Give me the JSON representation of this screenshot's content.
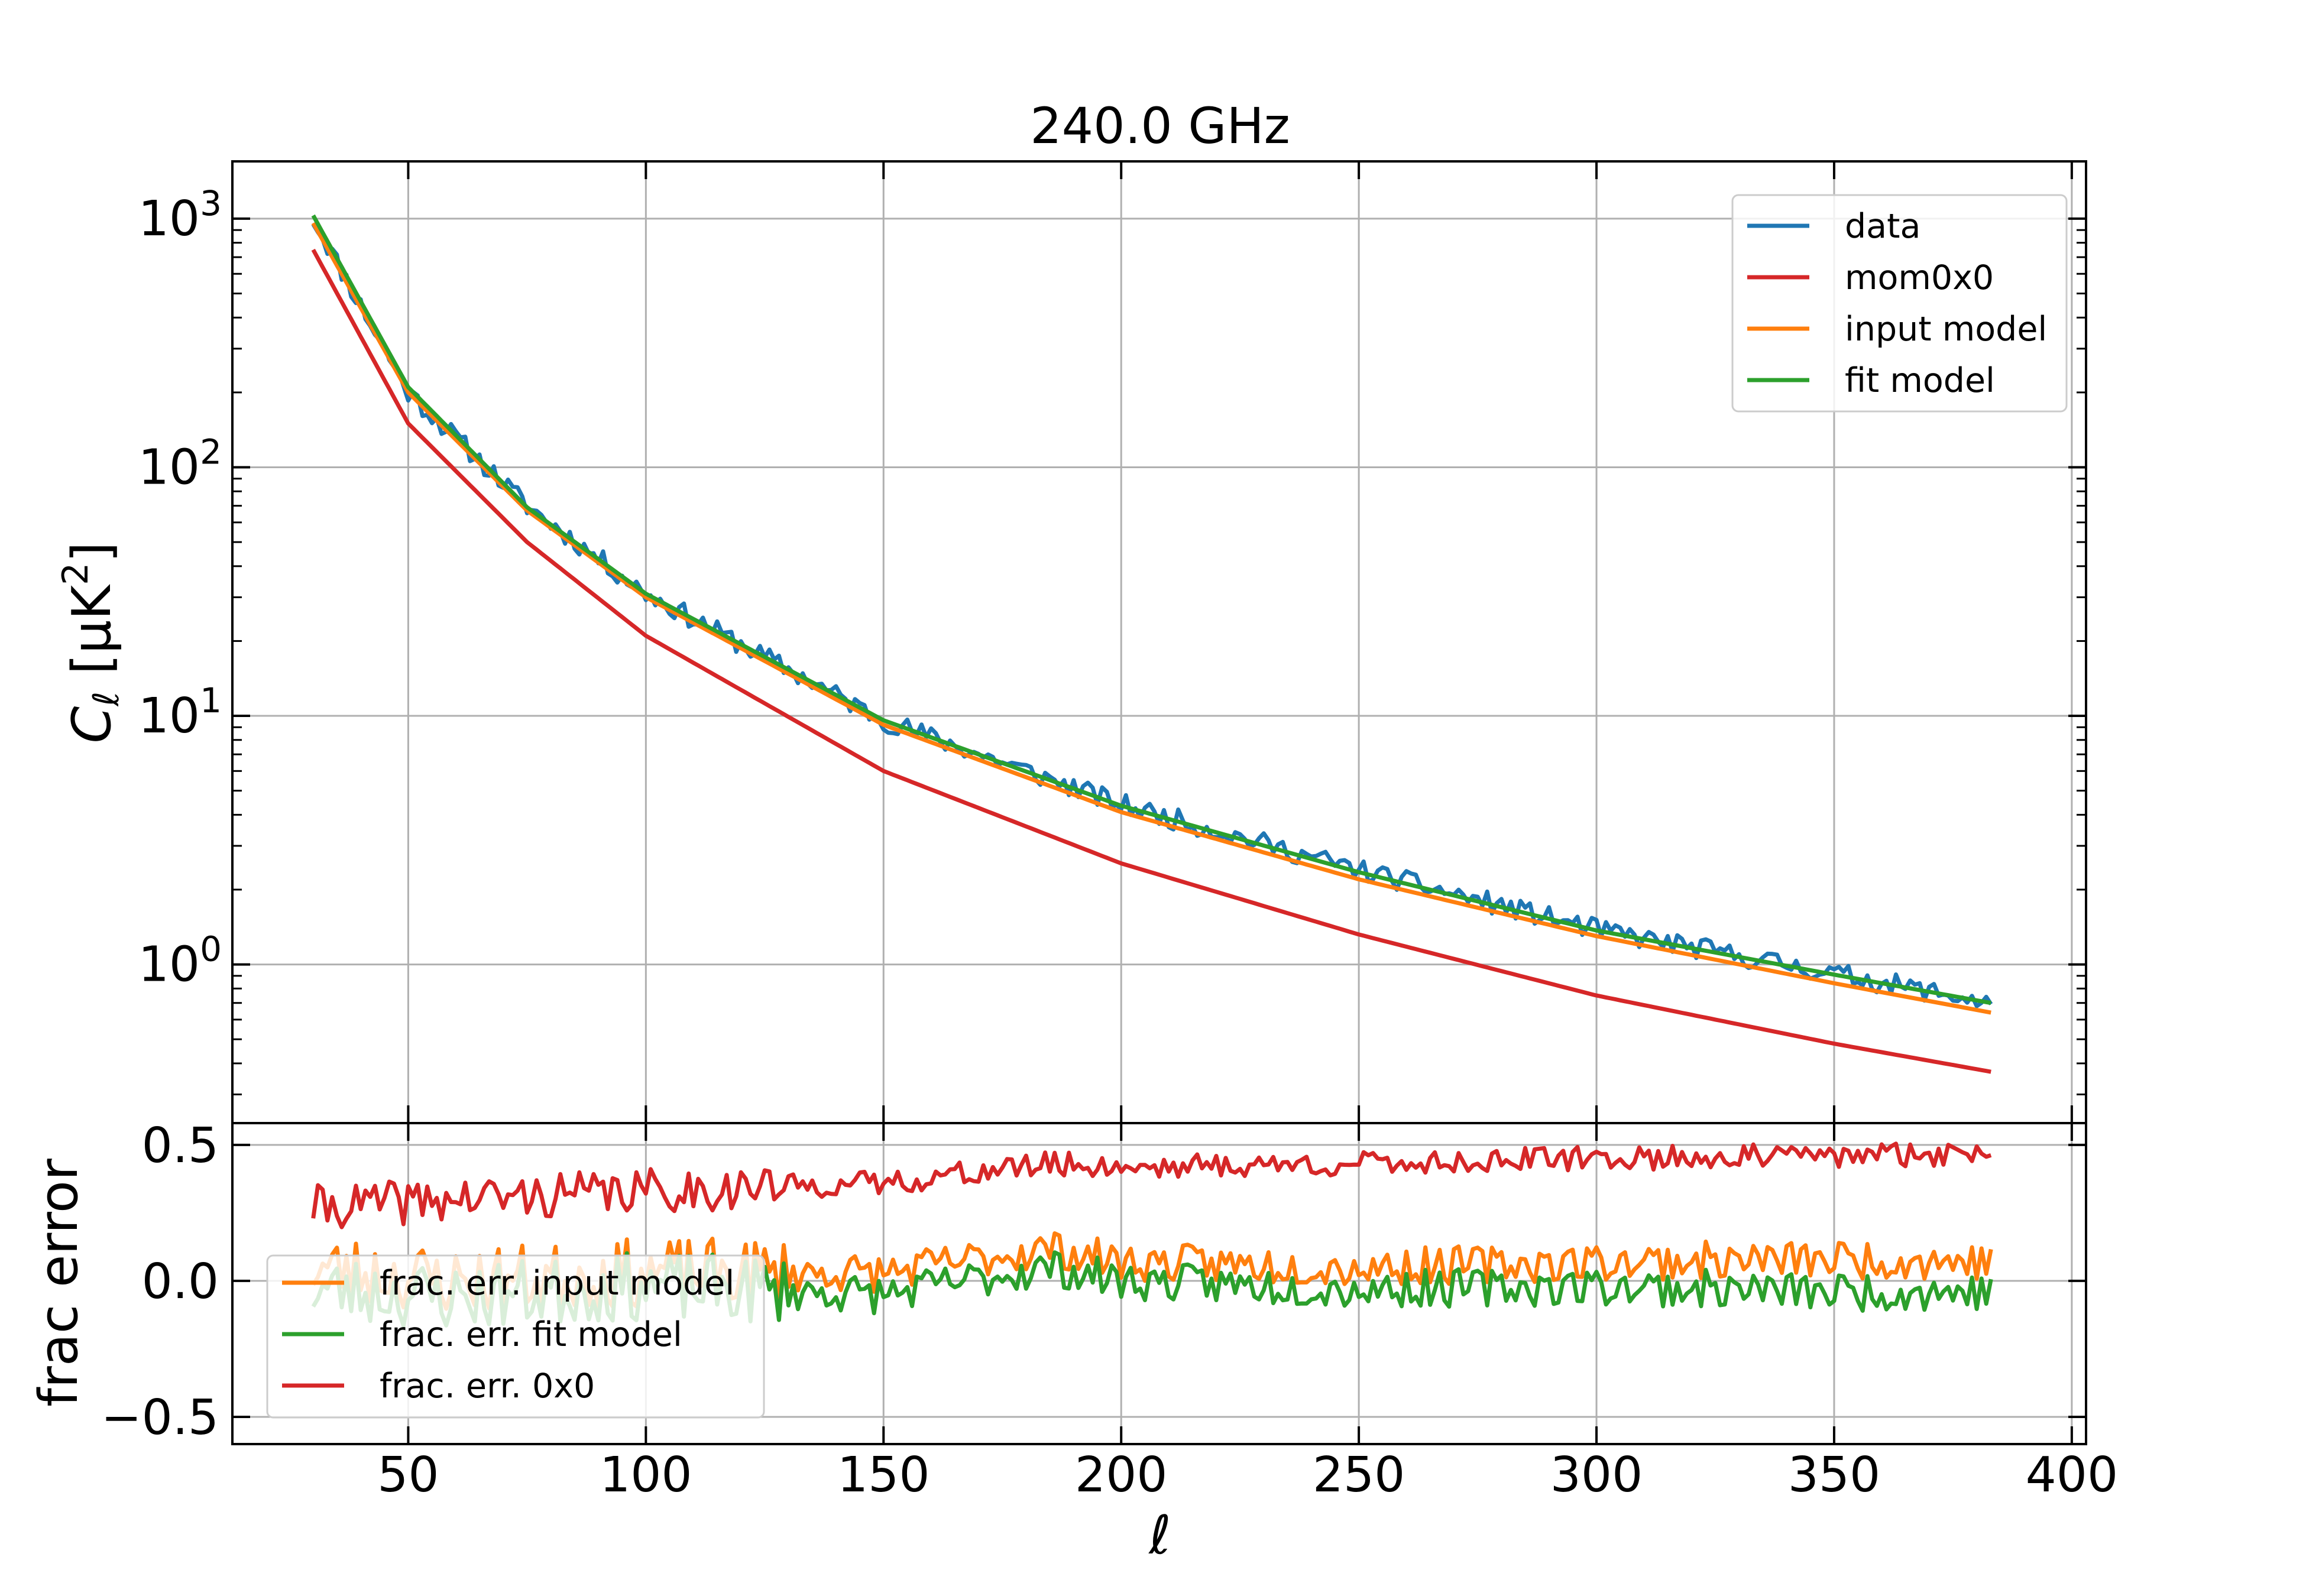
{
  "figure": {
    "title": "240.0 GHz",
    "xlabel": "ℓ"
  },
  "chart_data": [
    {
      "type": "line",
      "panel": "top",
      "title": "240.0 GHz",
      "ylabel_main": "C",
      "ylabel_sub": "ℓ",
      "ylabel_rest": " [μK",
      "ylabel_sup": "2",
      "ylabel_close": "]",
      "yscale": "log",
      "xlim": [
        13,
        403
      ],
      "ylim": [
        0.23,
        1700
      ],
      "xticks": [
        50,
        100,
        150,
        200,
        250,
        300,
        350,
        400
      ],
      "yticks": [
        {
          "value": 1000,
          "base": "10",
          "exp": "3"
        },
        {
          "value": 100,
          "base": "10",
          "exp": "2"
        },
        {
          "value": 10,
          "base": "10",
          "exp": "1"
        },
        {
          "value": 1,
          "base": "10",
          "exp": "0"
        }
      ],
      "grid": true,
      "legend_position": "top-right",
      "x_range": [
        30,
        383
      ],
      "series": [
        {
          "name": "data",
          "color": "#1f77b4",
          "noise": 0.1,
          "seed": 11,
          "points": [
            [
              30,
              1000
            ],
            [
              50,
              200
            ],
            [
              75,
              70
            ],
            [
              100,
              31
            ],
            [
              150,
              9.6
            ],
            [
              200,
              4.4
            ],
            [
              250,
              2.4
            ],
            [
              300,
              1.38
            ],
            [
              350,
              0.92
            ],
            [
              383,
              0.7
            ]
          ]
        },
        {
          "name": "mom0x0",
          "color": "#d62728",
          "noise": 0,
          "seed": 0,
          "points": [
            [
              30,
              750
            ],
            [
              50,
              150
            ],
            [
              75,
              50
            ],
            [
              100,
              21
            ],
            [
              150,
              6.0
            ],
            [
              200,
              2.55
            ],
            [
              250,
              1.32
            ],
            [
              300,
              0.75
            ],
            [
              350,
              0.48
            ],
            [
              383,
              0.37
            ]
          ]
        },
        {
          "name": "input model",
          "color": "#ff7f0e",
          "noise": 0,
          "seed": 0,
          "points": [
            [
              30,
              960
            ],
            [
              50,
              200
            ],
            [
              75,
              67
            ],
            [
              100,
              30
            ],
            [
              150,
              9.2
            ],
            [
              200,
              4.1
            ],
            [
              250,
              2.2
            ],
            [
              300,
              1.3
            ],
            [
              350,
              0.84
            ],
            [
              383,
              0.64
            ]
          ]
        },
        {
          "name": "fit model",
          "color": "#2ca02c",
          "noise": 0,
          "seed": 0,
          "points": [
            [
              30,
              1030
            ],
            [
              50,
              210
            ],
            [
              75,
              69
            ],
            [
              100,
              31
            ],
            [
              150,
              9.6
            ],
            [
              200,
              4.35
            ],
            [
              250,
              2.35
            ],
            [
              300,
              1.37
            ],
            [
              350,
              0.91
            ],
            [
              383,
              0.7
            ]
          ]
        }
      ]
    },
    {
      "type": "line",
      "panel": "bottom",
      "ylabel": "frac error",
      "xlabel": "ℓ",
      "xlim": [
        13,
        403
      ],
      "ylim": [
        -0.6,
        0.58
      ],
      "xticks": [
        50,
        100,
        150,
        200,
        250,
        300,
        350,
        400
      ],
      "yticks": [
        {
          "value": 0.5,
          "label": "0.5"
        },
        {
          "value": 0.0,
          "label": "0.0"
        },
        {
          "value": -0.5,
          "label": "−0.5"
        }
      ],
      "grid": true,
      "legend_position": "lower-left",
      "x_range": [
        30,
        383
      ],
      "series": [
        {
          "name": "frac. err. input model",
          "color": "#ff7f0e",
          "seed": 23,
          "noise": 0.07,
          "points": [
            [
              30,
              0.05
            ],
            [
              60,
              0.0
            ],
            [
              100,
              0.03
            ],
            [
              150,
              0.03
            ],
            [
              185,
              0.12
            ],
            [
              200,
              0.07
            ],
            [
              250,
              0.05
            ],
            [
              300,
              0.07
            ],
            [
              350,
              0.08
            ],
            [
              383,
              0.07
            ]
          ]
        },
        {
          "name": "frac. err. fit model",
          "color": "#2ca02c",
          "seed": 23,
          "noise": 0.07,
          "points": [
            [
              30,
              -0.03
            ],
            [
              60,
              -0.06
            ],
            [
              100,
              -0.02
            ],
            [
              150,
              -0.05
            ],
            [
              185,
              0.05
            ],
            [
              200,
              0.0
            ],
            [
              250,
              -0.03
            ],
            [
              300,
              -0.02
            ],
            [
              350,
              -0.04
            ],
            [
              383,
              -0.04
            ]
          ]
        },
        {
          "name": "frac. err. 0x0",
          "color": "#d62728",
          "seed": 41,
          "noise": 0.045,
          "points": [
            [
              30,
              0.27
            ],
            [
              60,
              0.3
            ],
            [
              100,
              0.33
            ],
            [
              150,
              0.36
            ],
            [
              185,
              0.43
            ],
            [
              200,
              0.42
            ],
            [
              250,
              0.43
            ],
            [
              300,
              0.45
            ],
            [
              350,
              0.46
            ],
            [
              383,
              0.47
            ]
          ]
        }
      ]
    }
  ]
}
